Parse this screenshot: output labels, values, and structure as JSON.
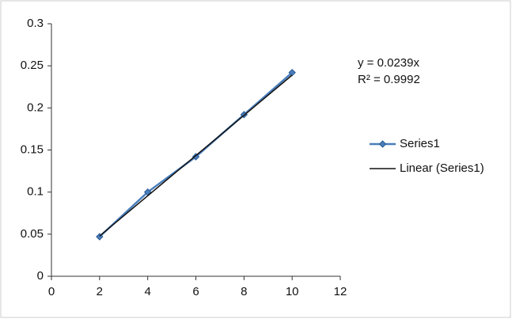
{
  "chart_data": {
    "type": "scatter",
    "series": [
      {
        "name": "Series1",
        "color": "#4a7ebb",
        "x": [
          2,
          4,
          6,
          8,
          10
        ],
        "values": [
          0.047,
          0.1,
          0.142,
          0.192,
          0.242
        ]
      }
    ],
    "trendline": {
      "name": "Linear (Series1)",
      "color": "#111111",
      "slope": 0.0239,
      "equation": "y = 0.0239x",
      "r_squared": "R² = 0.9992"
    },
    "xlim": [
      0,
      12
    ],
    "xticks": [
      0,
      2,
      4,
      6,
      8,
      10,
      12
    ],
    "ylim": [
      0,
      0.3
    ],
    "yticks": [
      0,
      0.05,
      0.1,
      0.15,
      0.2,
      0.25,
      0.3
    ],
    "grid": false,
    "legend": "right"
  }
}
